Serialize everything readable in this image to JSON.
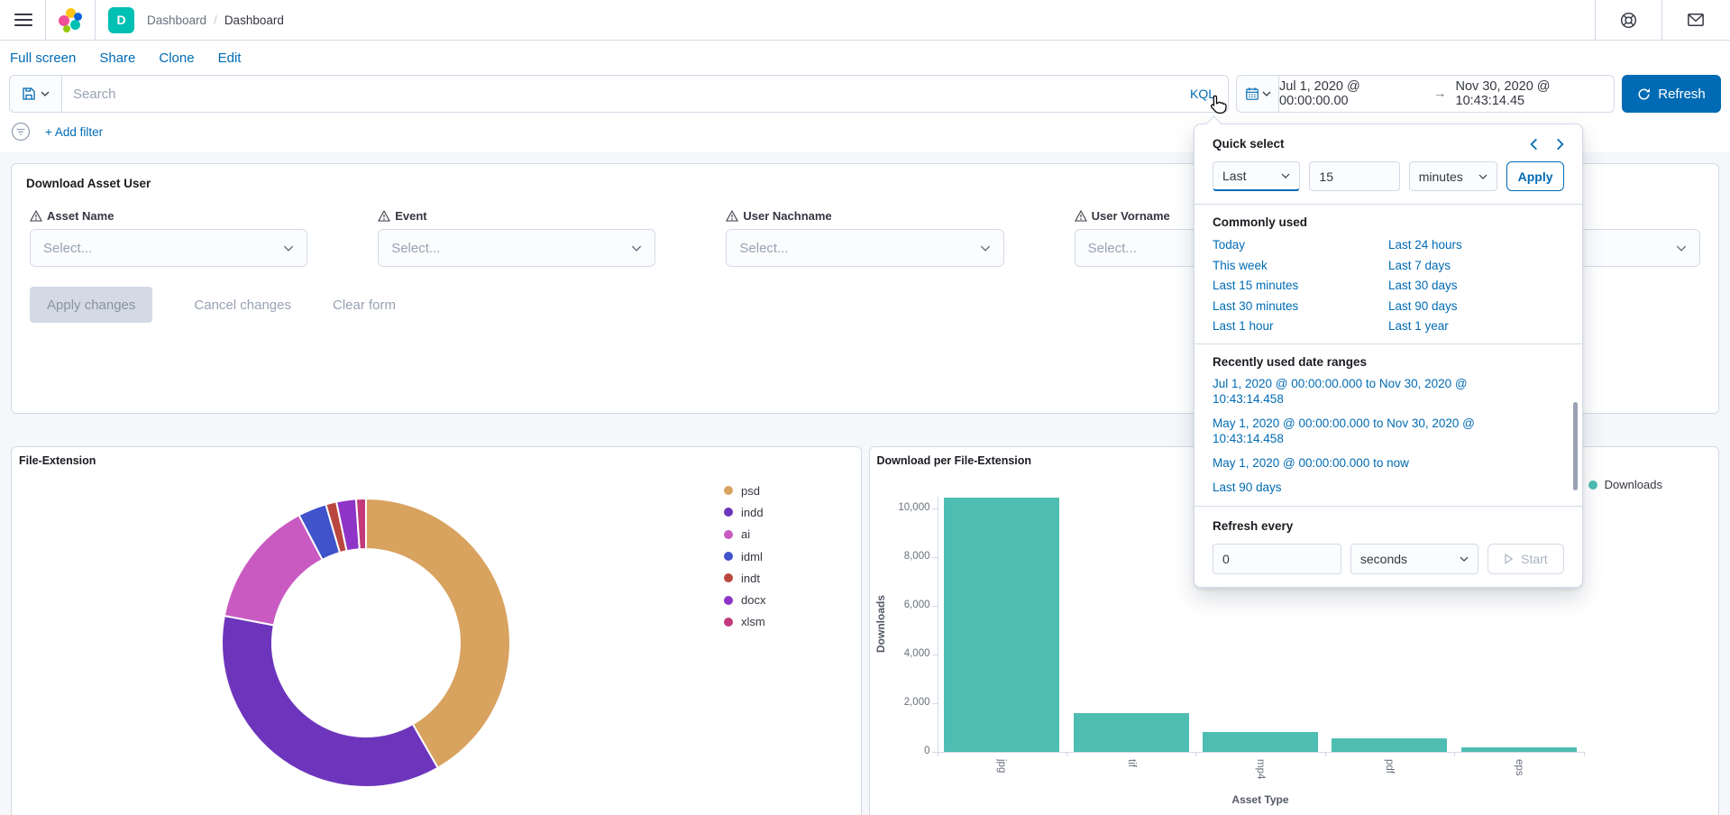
{
  "header": {
    "breadcrumb_parent": "Dashboard",
    "breadcrumb_separator": "/",
    "breadcrumb_current": "Dashboard",
    "space_badge": "D"
  },
  "menu": {
    "items": [
      "Full screen",
      "Share",
      "Clone",
      "Edit"
    ]
  },
  "query_bar": {
    "search_placeholder": "Search",
    "kql_label": "KQL",
    "date_from": "Jul 1, 2020 @ 00:00:00.00",
    "range_arrow": "→",
    "date_to": "Nov 30, 2020 @ 10:43:14.45",
    "refresh_label": "Refresh"
  },
  "filter_bar": {
    "add_filter_label": "+ Add filter"
  },
  "form_panel": {
    "title": "Download Asset User",
    "fields": [
      {
        "label": "Asset Name",
        "placeholder": "Select..."
      },
      {
        "label": "Event",
        "placeholder": "Select..."
      },
      {
        "label": "User Nachname",
        "placeholder": "Select..."
      },
      {
        "label": "User Vorname",
        "placeholder": "Select..."
      }
    ],
    "buttons": {
      "apply": "Apply changes",
      "cancel": "Cancel changes",
      "clear": "Clear form"
    }
  },
  "time_popup": {
    "quick_select_title": "Quick select",
    "tense_value": "Last",
    "amount_value": "15",
    "unit_value": "minutes",
    "apply_label": "Apply",
    "commonly_used_title": "Commonly used",
    "commonly_used": [
      "Today",
      "Last 24 hours",
      "This week",
      "Last 7 days",
      "Last 15 minutes",
      "Last 30 days",
      "Last 30 minutes",
      "Last 90 days",
      "Last 1 hour",
      "Last 1 year"
    ],
    "recent_title": "Recently used date ranges",
    "recent": [
      "Jul 1, 2020 @ 00:00:00.000 to Nov 30, 2020 @ 10:43:14.458",
      "May 1, 2020 @ 00:00:00.000 to Nov 30, 2020 @ 10:43:14.458",
      "May 1, 2020 @ 00:00:00.000 to now",
      "Last 90 days"
    ],
    "refresh_title": "Refresh every",
    "refresh_value": "0",
    "refresh_unit": "seconds",
    "start_label": "Start"
  },
  "chart_data": [
    {
      "type": "pie",
      "donut": true,
      "title": "File-Extension",
      "labels": [
        "psd",
        "indd",
        "ai",
        "idml",
        "indt",
        "docx",
        "xlsm"
      ],
      "values": [
        41.7,
        36.3,
        14.3,
        3.2,
        1.2,
        2.2,
        1.1
      ],
      "unit": "percent_estimate",
      "colors": [
        "#D8A25F",
        "#6D35BC",
        "#C95AC2",
        "#4053CB",
        "#BA473F",
        "#8E35C8",
        "#C23A7B"
      ],
      "legend_position": "right"
    },
    {
      "type": "bar",
      "title": "Download per File-Extension",
      "categories": [
        "jpg",
        "tif",
        "mp4",
        "pdf",
        "eps"
      ],
      "values": [
        10450,
        1600,
        800,
        550,
        200
      ],
      "xlabel": "Asset Type",
      "ylabel": "Downloads",
      "ylim": [
        0,
        10500
      ],
      "yticks": [
        0,
        2000,
        4000,
        6000,
        8000,
        10000
      ],
      "grid": false,
      "legend_label": "Downloads",
      "legend_position": "top-right",
      "bar_color": "#4EBDB2"
    }
  ],
  "colors": {
    "link": "#006BB4",
    "primary_button": "#006BB4",
    "space_badge": "#00BFB3",
    "border": "#D3DAE6",
    "text": "#343741",
    "muted": "#69707D",
    "placeholder": "#98A2B3"
  },
  "icons": {
    "topnav": [
      "menu-icon",
      "elastic-logo",
      "help-icon",
      "mail-icon"
    ],
    "query_bar": [
      "save-query-icon",
      "calendar-icon",
      "refresh-icon"
    ],
    "form": [
      "warning-triangle-icon"
    ],
    "popup": [
      "chevron-left-icon",
      "chevron-right-icon",
      "play-icon"
    ]
  }
}
